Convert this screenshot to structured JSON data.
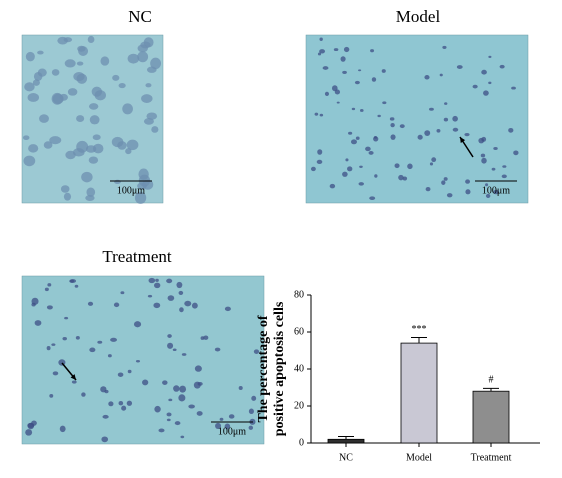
{
  "panels": [
    {
      "label": "NC",
      "scale": "100μm"
    },
    {
      "label": "Model",
      "scale": "100μm"
    },
    {
      "label": "Treatment",
      "scale": "100μm"
    }
  ],
  "chart_data": {
    "type": "bar",
    "y_label": [
      "The percentage of",
      "positive apoptosis cells"
    ],
    "categories": [
      "NC",
      "Model",
      "Treatment"
    ],
    "values": [
      2,
      54,
      28
    ],
    "errors": [
      1.5,
      3,
      1.5
    ],
    "annotations": [
      null,
      "***",
      "#"
    ],
    "colors": [
      "#2e2e2e",
      "#c9c8d4",
      "#8e8e8e"
    ],
    "ylim": [
      0,
      80
    ],
    "yticks": [
      0,
      20,
      40,
      60,
      80
    ]
  }
}
